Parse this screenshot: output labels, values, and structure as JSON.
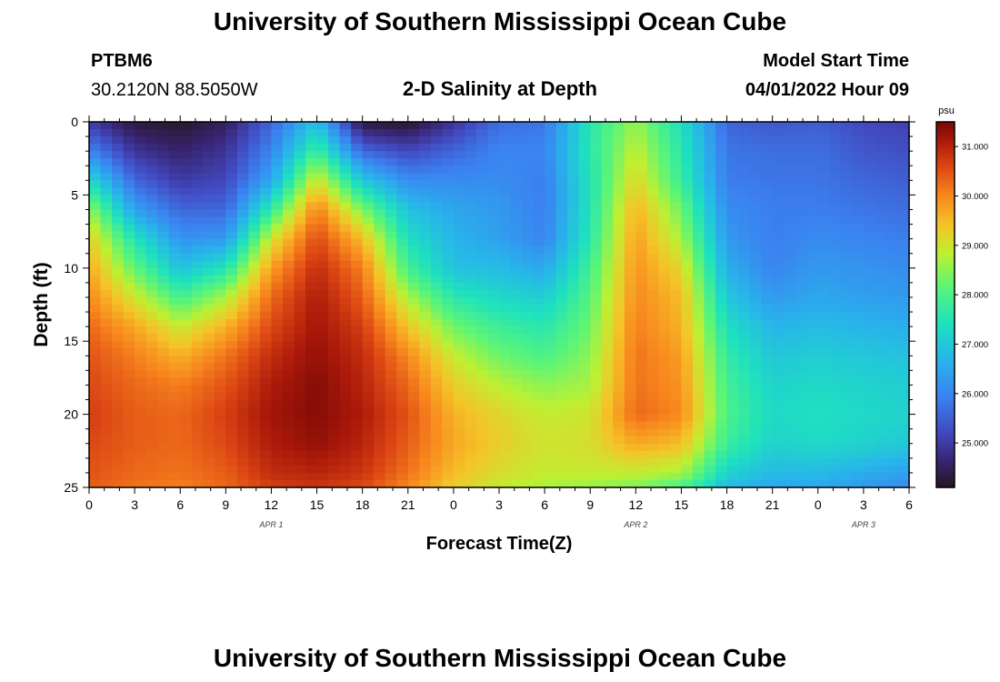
{
  "page": {
    "title": "University of Southern Mississippi Ocean Cube",
    "title_repeat": "University of Southern Mississippi Ocean Cube",
    "station": "PTBM6",
    "location": "30.2120N  88.5050W",
    "subtitle": "2-D Salinity at Depth",
    "model_start_label": "Model Start Time",
    "model_start_value": "04/01/2022 Hour 09"
  },
  "chart_data": {
    "type": "heatmap",
    "title": "2-D Salinity at Depth",
    "xlabel": "Forecast Time(Z)",
    "ylabel": "Depth (ft)",
    "x_start_hour": 0,
    "x_end_hour": 54,
    "x_tick_step_hours": 3,
    "x_tick_labels": [
      "0",
      "3",
      "6",
      "9",
      "12",
      "15",
      "18",
      "21",
      "0",
      "3",
      "6",
      "9",
      "12",
      "15",
      "18",
      "21",
      "0",
      "3",
      "6"
    ],
    "date_labels": [
      {
        "label": "APR 1",
        "hour": 12
      },
      {
        "label": "APR 2",
        "hour": 36
      },
      {
        "label": "APR 3",
        "hour": 51
      }
    ],
    "ylim": [
      0,
      25
    ],
    "y_ticks": [
      "0",
      "5",
      "10",
      "15",
      "20",
      "25"
    ],
    "y_minor_step": 1,
    "colorbar": {
      "unit": "psu",
      "min": 24.1,
      "max": 31.5,
      "tick_values": [
        31,
        30,
        29,
        28,
        27,
        26,
        25
      ],
      "tick_labels": [
        "31.000",
        "30.000",
        "29.000",
        "28.000",
        "27.000",
        "26.000",
        "25.000"
      ]
    },
    "grid": false,
    "time_hours": [
      0,
      3,
      6,
      9,
      12,
      15,
      18,
      21,
      24,
      27,
      30,
      33,
      36,
      39,
      42,
      45,
      48,
      51,
      54
    ],
    "depth_ft": [
      0,
      2,
      4,
      6,
      8,
      10,
      12,
      14,
      16,
      18,
      20,
      22,
      24,
      25
    ],
    "salinity_psu": [
      [
        25.0,
        24.3,
        24.2,
        24.5,
        25.6,
        26.9,
        24.3,
        24.2,
        24.9,
        25.7,
        25.8,
        27.6,
        28.6,
        27.4,
        25.6,
        25.4,
        25.5,
        25.2,
        25.1
      ],
      [
        26.0,
        24.9,
        24.6,
        24.9,
        26.0,
        27.9,
        25.6,
        25.2,
        25.6,
        26.0,
        26.0,
        27.6,
        28.9,
        27.6,
        25.8,
        25.7,
        25.7,
        25.4,
        25.3
      ],
      [
        27.3,
        25.6,
        25.0,
        25.2,
        26.5,
        29.1,
        27.0,
        26.1,
        26.1,
        26.1,
        25.9,
        27.5,
        29.2,
        27.8,
        25.9,
        25.8,
        25.8,
        25.6,
        25.5
      ],
      [
        28.6,
        26.4,
        25.6,
        25.6,
        27.7,
        30.1,
        28.4,
        26.9,
        26.5,
        26.3,
        25.9,
        27.5,
        29.6,
        28.3,
        26.1,
        25.9,
        25.9,
        25.8,
        25.7
      ],
      [
        29.3,
        27.5,
        26.2,
        26.3,
        29.0,
        30.6,
        29.5,
        27.4,
        26.7,
        26.4,
        26.0,
        27.6,
        29.8,
        28.7,
        26.3,
        25.9,
        26.1,
        26.0,
        25.9
      ],
      [
        29.7,
        28.2,
        26.9,
        27.5,
        29.8,
        30.9,
        30.1,
        27.9,
        26.9,
        26.8,
        26.5,
        27.9,
        29.9,
        29.2,
        26.6,
        26.0,
        26.3,
        26.2,
        26.1
      ],
      [
        30.0,
        29.0,
        27.9,
        28.7,
        30.3,
        31.1,
        30.4,
        28.7,
        27.6,
        27.3,
        27.1,
        28.1,
        30.0,
        29.5,
        27.0,
        26.3,
        26.5,
        26.4,
        26.3
      ],
      [
        30.3,
        29.7,
        28.9,
        29.6,
        30.6,
        31.2,
        30.7,
        29.4,
        28.3,
        27.8,
        27.6,
        28.3,
        30.1,
        29.6,
        27.4,
        26.7,
        26.8,
        26.7,
        26.6
      ],
      [
        30.5,
        30.1,
        29.6,
        30.2,
        30.9,
        31.3,
        30.9,
        30.0,
        28.9,
        28.3,
        28.0,
        28.5,
        30.2,
        29.8,
        27.7,
        27.0,
        27.1,
        27.0,
        26.9
      ],
      [
        30.6,
        30.3,
        30.1,
        30.5,
        31.1,
        31.4,
        31.0,
        30.3,
        29.3,
        28.8,
        28.5,
        28.7,
        30.2,
        29.9,
        27.9,
        27.2,
        27.3,
        27.2,
        27.1
      ],
      [
        30.7,
        30.4,
        30.3,
        30.7,
        31.2,
        31.4,
        31.1,
        30.5,
        29.6,
        29.2,
        28.9,
        29.0,
        30.3,
        30.0,
        28.0,
        27.3,
        27.4,
        27.3,
        27.2
      ],
      [
        30.6,
        30.4,
        30.3,
        30.6,
        31.1,
        31.3,
        31.0,
        30.4,
        29.7,
        29.3,
        29.0,
        29.1,
        29.7,
        29.5,
        27.8,
        27.2,
        27.3,
        27.2,
        27.0
      ],
      [
        30.5,
        30.3,
        30.2,
        30.4,
        30.9,
        31.0,
        30.8,
        30.2,
        29.5,
        29.1,
        28.9,
        28.9,
        28.9,
        28.7,
        27.2,
        26.8,
        26.8,
        26.6,
        26.4
      ],
      [
        30.4,
        30.2,
        30.1,
        30.3,
        30.7,
        30.8,
        30.6,
        30.0,
        29.3,
        28.9,
        28.7,
        28.6,
        28.4,
        28.0,
        26.8,
        26.5,
        26.5,
        26.3,
        26.1
      ]
    ]
  }
}
